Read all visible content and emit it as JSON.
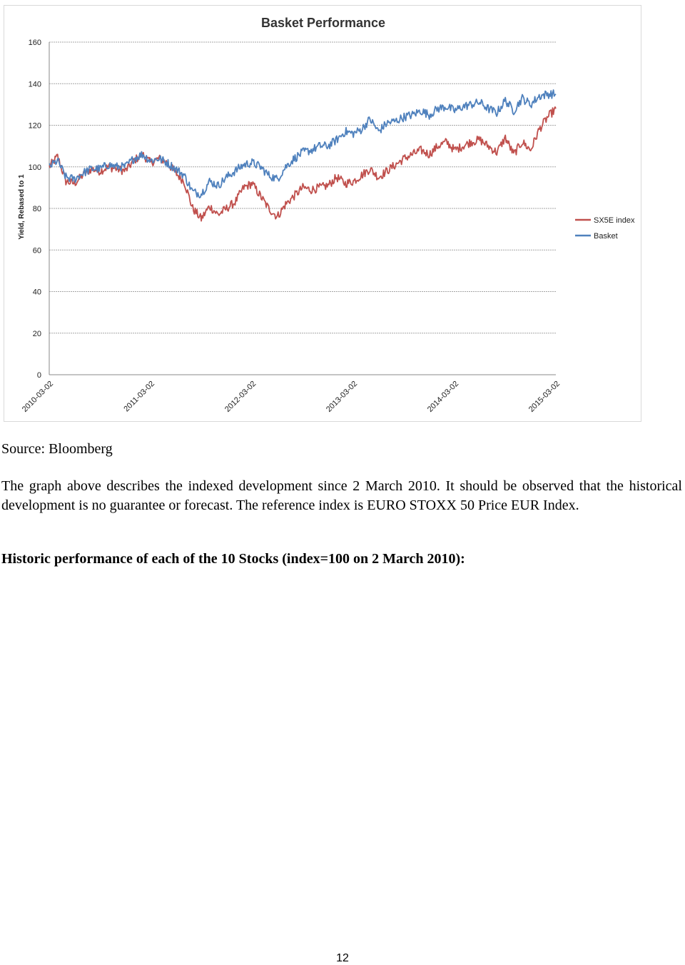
{
  "chart_data": {
    "type": "line",
    "title": "Basket Performance",
    "ylabel": "Yield, Rebased to 1",
    "xlabel": "",
    "ylim": [
      0,
      160
    ],
    "yticks": [
      0,
      20,
      40,
      60,
      80,
      100,
      120,
      140,
      160
    ],
    "x_tick_labels": [
      "2010-03-02",
      "2011-03-02",
      "2012-03-02",
      "2013-03-02",
      "2014-03-02",
      "2015-03-02"
    ],
    "grid": true,
    "legend_position": "right",
    "series": [
      {
        "name": "SX5E index",
        "color": "#c0504d",
        "x": [
          "2010-03-02",
          "2010-04-01",
          "2010-05-01",
          "2010-06-01",
          "2010-07-01",
          "2010-08-01",
          "2010-09-01",
          "2010-10-01",
          "2010-11-01",
          "2010-12-01",
          "2011-01-01",
          "2011-02-01",
          "2011-03-02",
          "2011-04-01",
          "2011-05-01",
          "2011-06-01",
          "2011-07-01",
          "2011-08-01",
          "2011-09-01",
          "2011-10-01",
          "2011-11-01",
          "2011-12-01",
          "2012-01-01",
          "2012-02-01",
          "2012-03-02",
          "2012-04-01",
          "2012-05-01",
          "2012-06-01",
          "2012-07-01",
          "2012-08-01",
          "2012-09-01",
          "2012-10-01",
          "2012-11-01",
          "2012-12-01",
          "2013-01-01",
          "2013-02-01",
          "2013-03-02",
          "2013-04-01",
          "2013-05-01",
          "2013-06-01",
          "2013-07-01",
          "2013-08-01",
          "2013-09-01",
          "2013-10-01",
          "2013-11-01",
          "2013-12-01",
          "2014-01-01",
          "2014-02-01",
          "2014-03-02",
          "2014-04-01",
          "2014-05-01",
          "2014-06-01",
          "2014-07-01",
          "2014-08-01",
          "2014-09-01",
          "2014-10-01",
          "2014-11-01",
          "2014-12-01",
          "2015-01-01",
          "2015-02-01",
          "2015-03-02"
        ],
        "values": [
          100,
          105,
          93,
          92,
          96,
          99,
          98,
          100,
          99,
          98,
          103,
          106,
          102,
          104,
          102,
          97,
          93,
          80,
          75,
          81,
          77,
          80,
          83,
          90,
          92,
          86,
          80,
          76,
          82,
          86,
          90,
          89,
          90,
          91,
          95,
          92,
          93,
          96,
          99,
          95,
          98,
          101,
          104,
          106,
          108,
          106,
          110,
          112,
          108,
          110,
          112,
          113,
          110,
          107,
          114,
          106,
          112,
          108,
          118,
          124,
          128
        ]
      },
      {
        "name": "Basket",
        "color": "#4f81bd",
        "x": [
          "2010-03-02",
          "2010-04-01",
          "2010-05-01",
          "2010-06-01",
          "2010-07-01",
          "2010-08-01",
          "2010-09-01",
          "2010-10-01",
          "2010-11-01",
          "2010-12-01",
          "2011-01-01",
          "2011-02-01",
          "2011-03-02",
          "2011-04-01",
          "2011-05-01",
          "2011-06-01",
          "2011-07-01",
          "2011-08-01",
          "2011-09-01",
          "2011-10-01",
          "2011-11-01",
          "2011-12-01",
          "2012-01-01",
          "2012-02-01",
          "2012-03-02",
          "2012-04-01",
          "2012-05-01",
          "2012-06-01",
          "2012-07-01",
          "2012-08-01",
          "2012-09-01",
          "2012-10-01",
          "2012-11-01",
          "2012-12-01",
          "2013-01-01",
          "2013-02-01",
          "2013-03-02",
          "2013-04-01",
          "2013-05-01",
          "2013-06-01",
          "2013-07-01",
          "2013-08-01",
          "2013-09-01",
          "2013-10-01",
          "2013-11-01",
          "2013-12-01",
          "2014-01-01",
          "2014-02-01",
          "2014-03-02",
          "2014-04-01",
          "2014-05-01",
          "2014-06-01",
          "2014-07-01",
          "2014-08-01",
          "2014-09-01",
          "2014-10-01",
          "2014-11-01",
          "2014-12-01",
          "2015-01-01",
          "2015-02-01",
          "2015-03-02"
        ],
        "values": [
          100,
          103,
          95,
          94,
          97,
          99,
          99,
          101,
          100,
          100,
          104,
          106,
          103,
          104,
          102,
          99,
          96,
          88,
          87,
          93,
          91,
          95,
          98,
          101,
          102,
          100,
          96,
          94,
          100,
          104,
          107,
          108,
          110,
          110,
          113,
          117,
          116,
          118,
          123,
          117,
          121,
          122,
          124,
          125,
          127,
          125,
          128,
          129,
          127,
          129,
          130,
          131,
          128,
          126,
          132,
          127,
          133,
          130,
          134,
          135,
          135
        ]
      }
    ]
  },
  "source": "Source: Bloomberg",
  "paragraph": "The graph above describes the indexed development since 2 March 2010. It should be observed that the historical development is no guarantee or forecast. The reference index is EURO STOXX 50 Price EUR Index.",
  "heading": "Historic performance of each of the 10 Stocks (index=100 on 2 March 2010):",
  "page_number": "12"
}
